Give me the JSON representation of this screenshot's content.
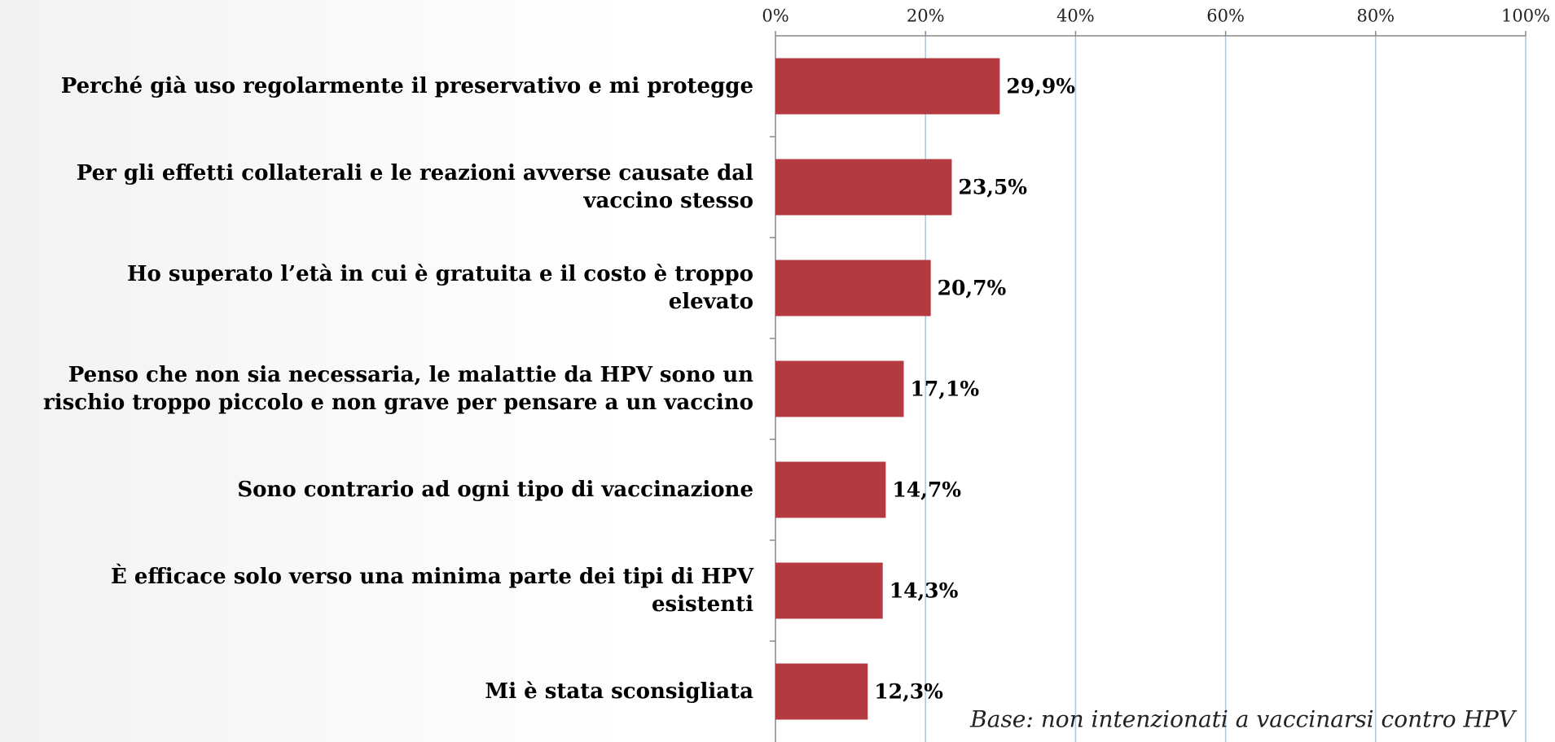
{
  "chart_data": {
    "type": "bar",
    "orientation": "horizontal",
    "categories": [
      "Perché già uso regolarmente il preservativo e mi protegge",
      "Per gli effetti collaterali e le reazioni avverse causate dal\nvaccino stesso",
      "Ho superato l’età in cui è gratuita e il costo è troppo\nelevato",
      "Penso che non sia necessaria, le malattie da HPV sono un\nrischio troppo piccolo e non grave per pensare a un vaccino",
      "Sono contrario ad ogni tipo di vaccinazione",
      "È efficace solo verso una minima parte dei tipi di HPV\nesistenti",
      "Mi è stata sconsigliata"
    ],
    "values": [
      29.9,
      23.5,
      20.7,
      17.1,
      14.7,
      14.3,
      12.3
    ],
    "value_labels": [
      "29,9%",
      "23,5%",
      "20,7%",
      "17,1%",
      "14,7%",
      "14,3%",
      "12,3%"
    ],
    "color": "#b33b3f",
    "xlim": [
      0,
      100
    ],
    "xticks": [
      {
        "value": 0,
        "label": "0%"
      },
      {
        "value": 20,
        "label": "20%"
      },
      {
        "value": 40,
        "label": "40%"
      },
      {
        "value": 60,
        "label": "60%"
      },
      {
        "value": 80,
        "label": "80%"
      },
      {
        "value": 100,
        "label": "100%"
      }
    ],
    "grid": true,
    "annotation": "Base: non intenzionati a vaccinarsi contro HPV"
  }
}
